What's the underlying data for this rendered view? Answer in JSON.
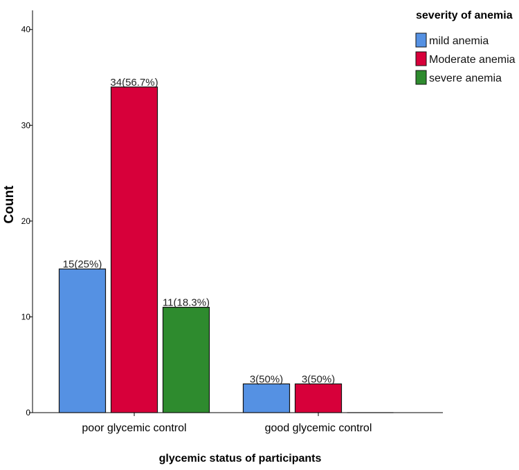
{
  "chart_data": {
    "type": "bar",
    "categories": [
      "poor glycemic control",
      "good glycemic control"
    ],
    "series": [
      {
        "name": "mild anemia",
        "color": "#5591e3",
        "values": [
          15,
          3
        ],
        "labels": [
          "15(25%)",
          "3(50%)"
        ]
      },
      {
        "name": "Moderate anemia",
        "color": "#d7003a",
        "values": [
          34,
          3
        ],
        "labels": [
          "34(56.7%)",
          "3(50%)"
        ]
      },
      {
        "name": "severe anemia",
        "color": "#2e8b2e",
        "values": [
          11,
          0
        ],
        "labels": [
          "11(18.3%)",
          ""
        ]
      }
    ],
    "title": "",
    "xlabel": "glycemic status of participants",
    "ylabel": "Count",
    "ylim": [
      0,
      42
    ],
    "yticks": [
      0,
      10,
      20,
      30,
      40
    ],
    "legend_title": "severity of anemia",
    "legend_position": "top-right",
    "grid": false
  }
}
